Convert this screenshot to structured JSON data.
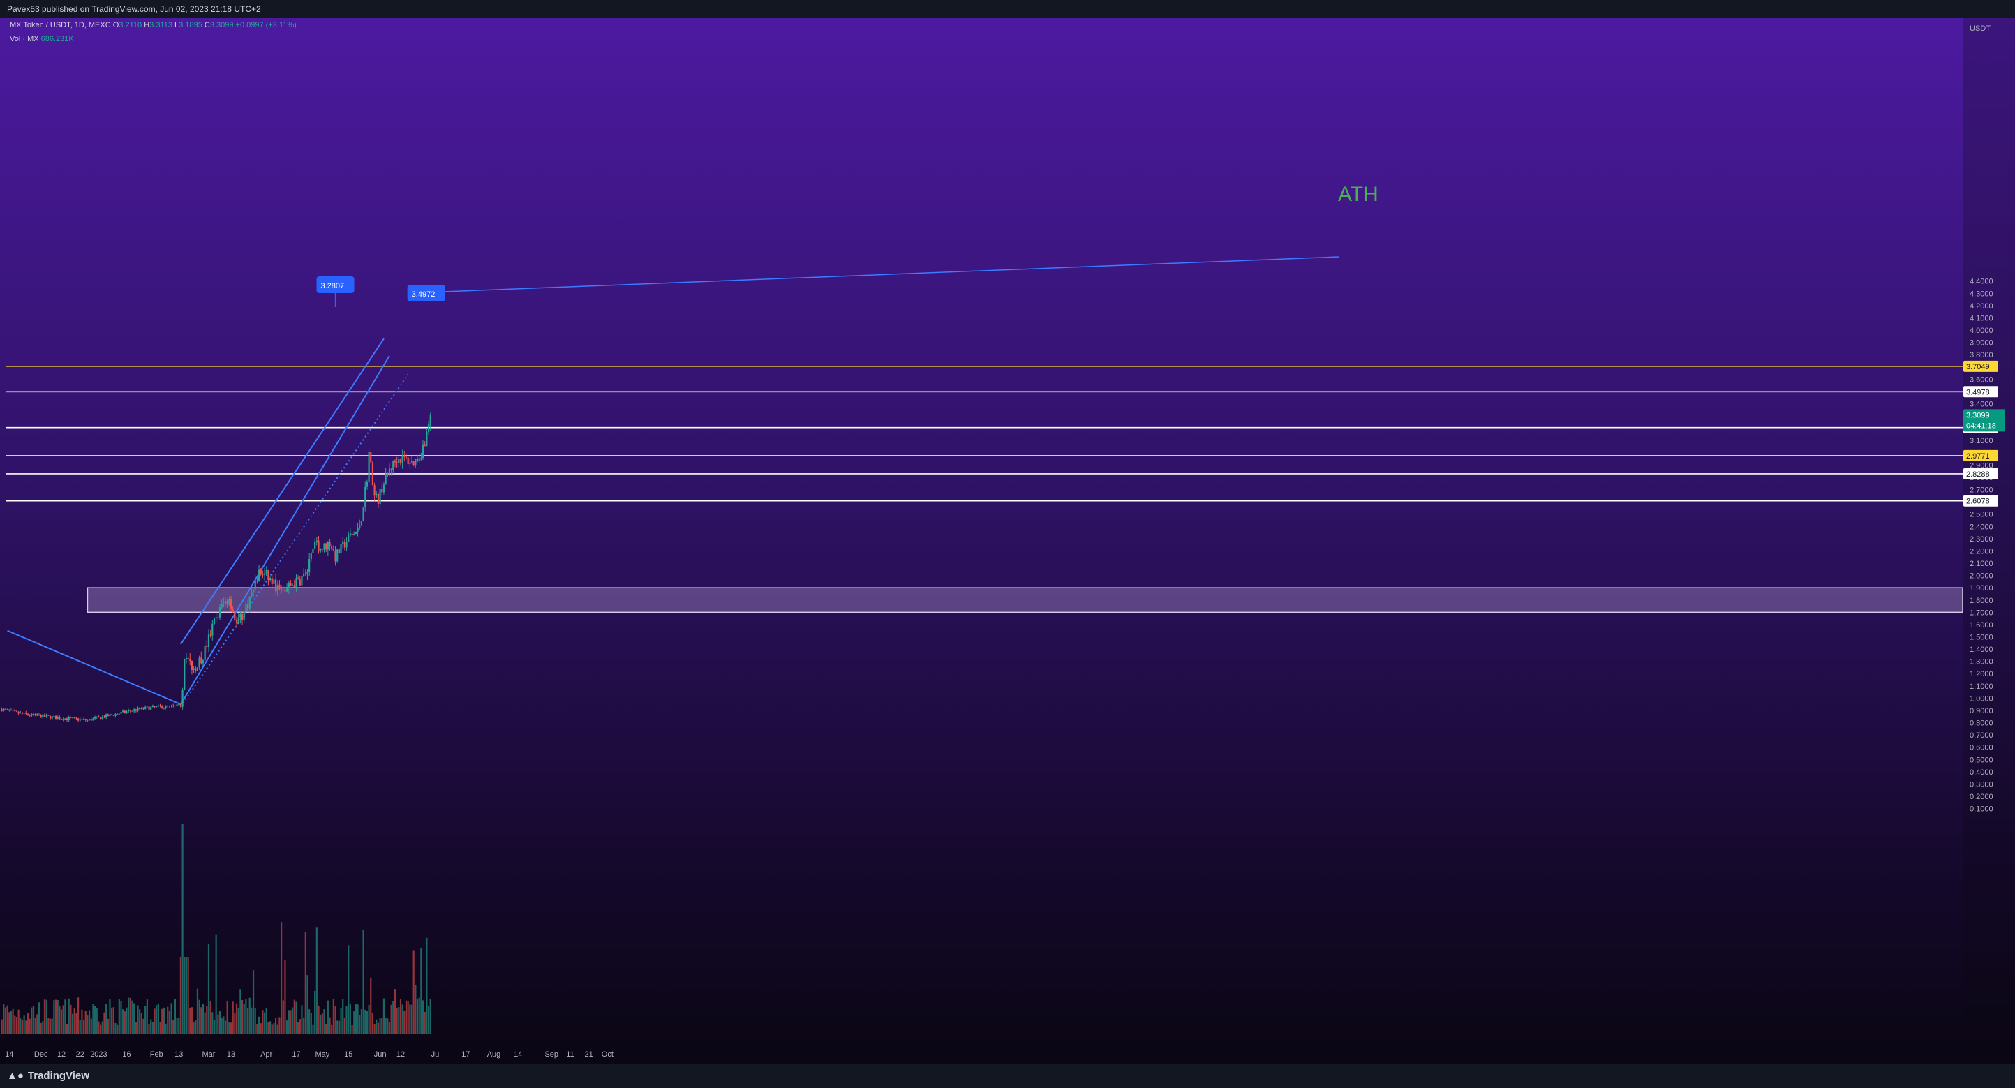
{
  "header": {
    "published": "Pavex53 published on TradingView.com, Jun 02, 2023 21:18 UTC+2"
  },
  "legend": {
    "symbol": "MX Token / USDT, 1D, MEXC",
    "open_label": "O",
    "open": "3.2110",
    "high_label": "H",
    "high": "3.3113",
    "low_label": "L",
    "low": "3.1895",
    "close_label": "C",
    "close": "3.3099",
    "change": "+0.0997 (+3.11%)",
    "volume_label": "Vol · MX",
    "volume": "686.231K"
  },
  "axis": {
    "unit": "USDT",
    "price_ticks": [
      "4.4000",
      "4.3000",
      "4.2000",
      "4.1000",
      "4.0000",
      "3.9000",
      "3.8000",
      "3.6000",
      "3.4000",
      "3.1000",
      "2.9000",
      "2.8000",
      "2.7000",
      "2.5000",
      "2.4000",
      "2.3000",
      "2.2000",
      "2.1000",
      "2.0000",
      "1.9000",
      "1.8000",
      "1.7000",
      "1.6000",
      "1.5000",
      "1.4000",
      "1.3000",
      "1.2000",
      "1.1000",
      "1.0000",
      "0.9000",
      "0.8000",
      "0.7000",
      "0.6000",
      "0.5000",
      "0.4000",
      "0.3000",
      "0.2000",
      "0.1000"
    ],
    "time_labels": [
      "14",
      "Dec",
      "12",
      "22",
      "2023",
      "16",
      "Feb",
      "13",
      "Mar",
      "13",
      "Apr",
      "17",
      "May",
      "15",
      "Jun",
      "12",
      "Jul",
      "17",
      "Aug",
      "14",
      "Sep",
      "11",
      "21",
      "Oct"
    ]
  },
  "chart_data": {
    "type": "candlestick",
    "instrument": "MX Token / USDT, 1D, MEXC",
    "y_unit": "USDT",
    "ylim": [
      0,
      4.5
    ],
    "grid": false,
    "last_price": "3.3099",
    "countdown": "04:41:18",
    "horizontal_levels": [
      {
        "price": 3.7049,
        "label": "3.7049",
        "color": "#fdd835"
      },
      {
        "price": 3.4978,
        "label": "3.4978",
        "color": "#ffffff"
      },
      {
        "price": 3.2053,
        "label": "3.2053",
        "color": "#ffffff"
      },
      {
        "price": 2.9771,
        "label": "2.9771",
        "color": "#fdd835"
      },
      {
        "price": 2.8288,
        "label": "2.8288",
        "color": "#ffffff"
      },
      {
        "price": 2.6078,
        "label": "2.6078",
        "color": "#ffffff"
      }
    ],
    "zone": {
      "low": 1.7,
      "high": 1.9,
      "start": "Dec 26, 2022"
    },
    "annotations": [
      {
        "text": "ATH",
        "color": "#4caf50"
      },
      {
        "text": "3.2807",
        "type": "price-callout",
        "date": "May 08, 2023"
      },
      {
        "text": "3.4972",
        "type": "price-callout",
        "date": "Jun 25, 2023"
      }
    ],
    "trend_lines": [
      {
        "from": [
          "Nov 13, 2022",
          1.55
        ],
        "to": [
          "Feb 14, 2023",
          0.95
        ]
      },
      {
        "from": [
          "Feb 14, 2023",
          1.44
        ],
        "to": [
          "Jun 03, 2023",
          3.93
        ]
      },
      {
        "from": [
          "Feb 14, 2023",
          0.95
        ],
        "to": [
          "Jun 06, 2023",
          3.79
        ]
      },
      {
        "from": [
          "Feb 14, 2023",
          0.93
        ],
        "to": [
          "Jun 16, 2023",
          3.64
        ],
        "style": "dotted"
      }
    ],
    "colors": {
      "up": "#26a69a",
      "down": "#ef5350",
      "channel": "#2962ff"
    }
  },
  "footer": {
    "brand": "TradingView"
  }
}
